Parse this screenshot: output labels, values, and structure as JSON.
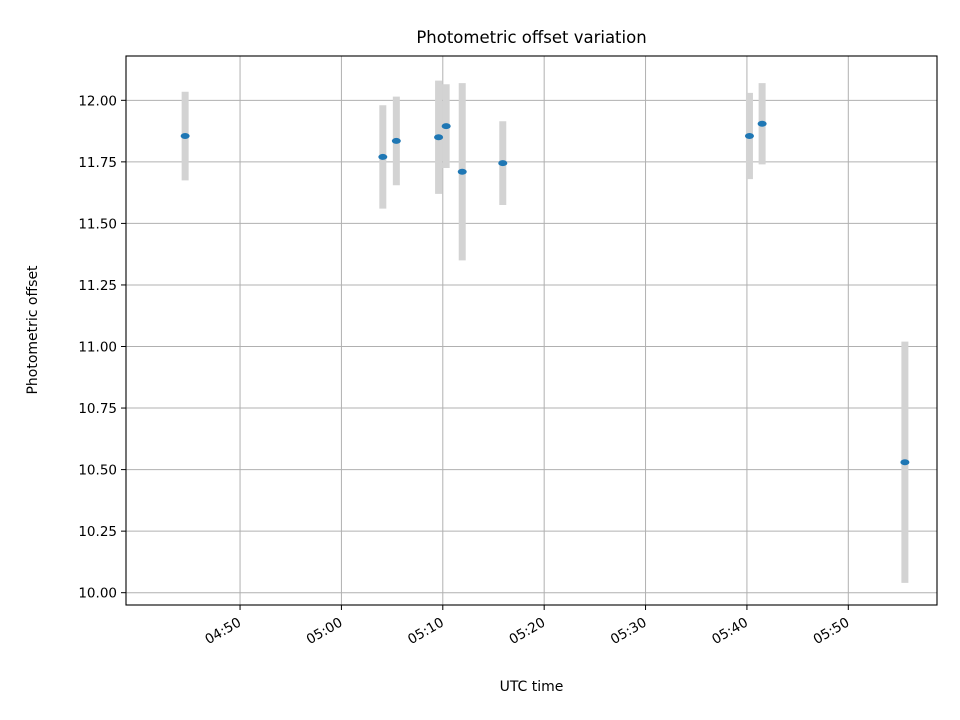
{
  "chart_data": {
    "type": "scatter",
    "title": "Photometric offset variation",
    "xlabel": "UTC time",
    "ylabel": "Photometric offset",
    "xlim": [
      "04:38:45",
      "05:58:45"
    ],
    "ylim": [
      9.95,
      12.18
    ],
    "grid": true,
    "legend": "none",
    "x_ticks": [
      "04:50",
      "05:00",
      "05:10",
      "05:20",
      "05:30",
      "05:40",
      "05:50"
    ],
    "y_ticks": [
      "10.00",
      "10.25",
      "10.50",
      "10.75",
      "11.00",
      "11.25",
      "11.50",
      "11.75",
      "12.00"
    ],
    "series": [
      {
        "marker_color": "#1f77b4",
        "errorbar_color": "#d3d3d3",
        "points": [
          {
            "x": "04:44:35",
            "y": 11.855,
            "yerr": 0.18
          },
          {
            "x": "05:04:05",
            "y": 11.77,
            "yerr": 0.21
          },
          {
            "x": "05:05:25",
            "y": 11.835,
            "yerr": 0.18
          },
          {
            "x": "05:09:35",
            "y": 11.85,
            "yerr": 0.23
          },
          {
            "x": "05:10:20",
            "y": 11.895,
            "yerr": 0.17
          },
          {
            "x": "05:11:55",
            "y": 11.71,
            "yerr": 0.36
          },
          {
            "x": "05:15:55",
            "y": 11.745,
            "yerr": 0.17
          },
          {
            "x": "05:40:15",
            "y": 11.855,
            "yerr": 0.175
          },
          {
            "x": "05:41:30",
            "y": 11.905,
            "yerr": 0.165
          },
          {
            "x": "05:55:35",
            "y": 10.53,
            "yerr": 0.49
          }
        ]
      }
    ]
  }
}
